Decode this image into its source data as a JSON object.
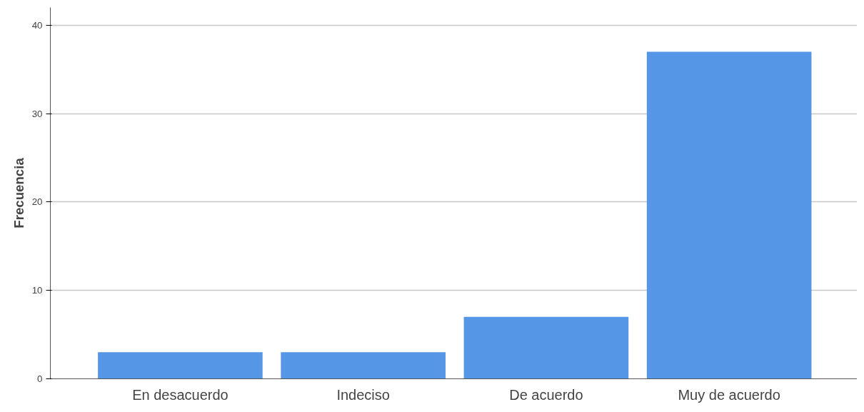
{
  "chart_data": {
    "type": "bar",
    "ylabel": "Frecuencia",
    "categories": [
      "En desacuerdo",
      "Indeciso",
      "De acuerdo",
      "Muy de acuerdo"
    ],
    "values": [
      3,
      3,
      7,
      37
    ],
    "color": "#5596e6",
    "ylim": [
      0,
      42
    ],
    "yticks": [
      0,
      10,
      20,
      30,
      40
    ],
    "grid": "y"
  }
}
